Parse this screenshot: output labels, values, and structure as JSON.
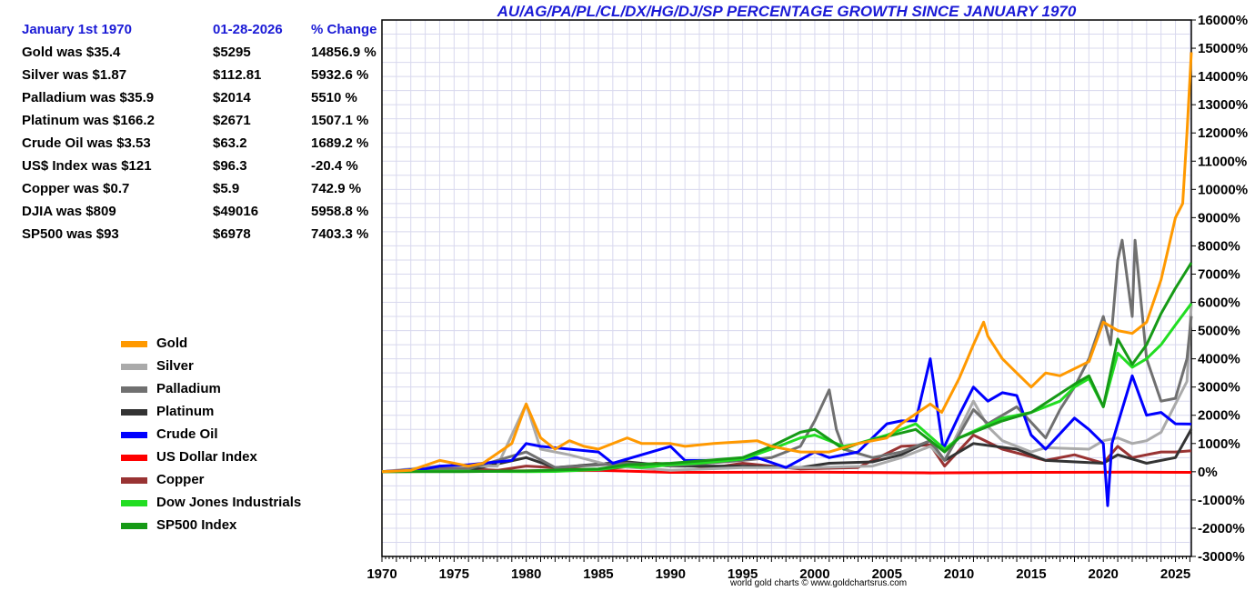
{
  "title": "AU/AG/PA/PL/CL/DX/HG/DJ/SP PERCENTAGE GROWTH SINCE JANUARY 1970",
  "footer": "world gold charts © www.goldchartsrus.com",
  "stats": {
    "headers": [
      "January 1st 1970",
      "01-28-2026",
      "% Change"
    ],
    "rows": [
      {
        "label": "Gold was $35.4",
        "now": "$5295",
        "change": "14856.9 %"
      },
      {
        "label": "Silver was $1.87",
        "now": "$112.81",
        "change": "5932.6 %"
      },
      {
        "label": "Palladium was $35.9",
        "now": "$2014",
        "change": "5510 %"
      },
      {
        "label": "Platinum was $166.2",
        "now": "$2671",
        "change": "1507.1 %"
      },
      {
        "label": "Crude Oil was $3.53",
        "now": "$63.2",
        "change": "1689.2 %"
      },
      {
        "label": "US$ Index was $121",
        "now": "$96.3",
        "change": "-20.4 %"
      },
      {
        "label": "Copper was $0.7",
        "now": "$5.9",
        "change": "742.9 %"
      },
      {
        "label": "DJIA was $809",
        "now": "$49016",
        "change": "5958.8 %"
      },
      {
        "label": "SP500 was $93",
        "now": "$6978",
        "change": "7403.3 %"
      }
    ]
  },
  "chart_data": {
    "type": "line",
    "title": "AU/AG/PA/PL/CL/DX/HG/DJ/SP PERCENTAGE GROWTH SINCE JANUARY 1970",
    "xlabel": "",
    "ylabel": "",
    "xlim": [
      1970,
      2026.1
    ],
    "ylim": [
      -3000,
      16000
    ],
    "x_ticks": [
      1970,
      1975,
      1980,
      1985,
      1990,
      1995,
      2000,
      2005,
      2010,
      2015,
      2020,
      2025
    ],
    "y_ticks": [
      -3000,
      -2000,
      -1000,
      0,
      1000,
      2000,
      3000,
      4000,
      5000,
      6000,
      7000,
      8000,
      9000,
      10000,
      11000,
      12000,
      13000,
      14000,
      15000,
      16000
    ],
    "y_tick_labels": [
      "-3000%",
      "-2000%",
      "-1000%",
      "0%",
      "1000%",
      "2000%",
      "3000%",
      "4000%",
      "5000%",
      "6000%",
      "7000%",
      "8000%",
      "9000%",
      "10000%",
      "11000%",
      "12000%",
      "13000%",
      "14000%",
      "15000%",
      "16000%"
    ],
    "grid": true,
    "legend_position": "left",
    "series": [
      {
        "name": "US Dollar Index",
        "color": "#ff0000",
        "points": [
          [
            1970,
            0
          ],
          [
            1985,
            50
          ],
          [
            1990,
            -20
          ],
          [
            2000,
            -10
          ],
          [
            2008,
            -40
          ],
          [
            2015,
            -20
          ],
          [
            2022,
            -15
          ],
          [
            2026.1,
            -20
          ]
        ]
      },
      {
        "name": "Copper",
        "color": "#993333",
        "points": [
          [
            1970,
            0
          ],
          [
            1974,
            150
          ],
          [
            1978,
            50
          ],
          [
            1980,
            200
          ],
          [
            1985,
            60
          ],
          [
            1989,
            300
          ],
          [
            1993,
            150
          ],
          [
            1995,
            300
          ],
          [
            1999,
            100
          ],
          [
            2003,
            150
          ],
          [
            2006,
            900
          ],
          [
            2008,
            950
          ],
          [
            2009,
            200
          ],
          [
            2011,
            1300
          ],
          [
            2013,
            800
          ],
          [
            2016,
            400
          ],
          [
            2018,
            600
          ],
          [
            2020,
            300
          ],
          [
            2021,
            900
          ],
          [
            2022,
            500
          ],
          [
            2024,
            700
          ],
          [
            2025,
            700
          ],
          [
            2026.1,
            743
          ]
        ]
      },
      {
        "name": "Platinum",
        "color": "#333333",
        "points": [
          [
            1970,
            0
          ],
          [
            1974,
            100
          ],
          [
            1976,
            50
          ],
          [
            1980,
            500
          ],
          [
            1982,
            150
          ],
          [
            1987,
            350
          ],
          [
            1990,
            200
          ],
          [
            1995,
            200
          ],
          [
            1999,
            150
          ],
          [
            2001,
            300
          ],
          [
            2004,
            350
          ],
          [
            2006,
            600
          ],
          [
            2008,
            1100
          ],
          [
            2009,
            400
          ],
          [
            2011,
            1000
          ],
          [
            2014,
            800
          ],
          [
            2016,
            400
          ],
          [
            2020,
            300
          ],
          [
            2021,
            600
          ],
          [
            2023,
            300
          ],
          [
            2025,
            500
          ],
          [
            2026.1,
            1507
          ]
        ]
      },
      {
        "name": "Silver",
        "color": "#aaaaaa",
        "points": [
          [
            1970,
            0
          ],
          [
            1974,
            200
          ],
          [
            1978,
            200
          ],
          [
            1980,
            2400
          ],
          [
            1981,
            800
          ],
          [
            1983,
            600
          ],
          [
            1986,
            200
          ],
          [
            1990,
            50
          ],
          [
            1995,
            150
          ],
          [
            2000,
            150
          ],
          [
            2004,
            200
          ],
          [
            2006,
            500
          ],
          [
            2008,
            900
          ],
          [
            2009,
            400
          ],
          [
            2011,
            2500
          ],
          [
            2012,
            1600
          ],
          [
            2013,
            1100
          ],
          [
            2015,
            700
          ],
          [
            2016,
            850
          ],
          [
            2019,
            800
          ],
          [
            2020,
            1100
          ],
          [
            2021,
            1200
          ],
          [
            2022,
            1000
          ],
          [
            2023,
            1100
          ],
          [
            2024,
            1400
          ],
          [
            2025,
            2400
          ],
          [
            2025.8,
            3200
          ],
          [
            2026.1,
            5933
          ]
        ]
      },
      {
        "name": "Palladium",
        "color": "#707070",
        "points": [
          [
            1970,
            0
          ],
          [
            1973,
            100
          ],
          [
            1976,
            100
          ],
          [
            1980,
            700
          ],
          [
            1982,
            150
          ],
          [
            1987,
            300
          ],
          [
            1990,
            200
          ],
          [
            1995,
            400
          ],
          [
            1997,
            500
          ],
          [
            1999,
            900
          ],
          [
            2000,
            1800
          ],
          [
            2001,
            2900
          ],
          [
            2001.5,
            1500
          ],
          [
            2002,
            800
          ],
          [
            2004,
            500
          ],
          [
            2006,
            700
          ],
          [
            2008,
            1100
          ],
          [
            2009,
            400
          ],
          [
            2011,
            2200
          ],
          [
            2012,
            1700
          ],
          [
            2014,
            2300
          ],
          [
            2016,
            1200
          ],
          [
            2017,
            2200
          ],
          [
            2018,
            3000
          ],
          [
            2019,
            4000
          ],
          [
            2020,
            5500
          ],
          [
            2020.5,
            4500
          ],
          [
            2021,
            7500
          ],
          [
            2021.3,
            8200
          ],
          [
            2022,
            5500
          ],
          [
            2022.2,
            8200
          ],
          [
            2023,
            4000
          ],
          [
            2024,
            2500
          ],
          [
            2025,
            2600
          ],
          [
            2025.8,
            4000
          ],
          [
            2026.1,
            5510
          ]
        ]
      },
      {
        "name": "Crude Oil",
        "color": "#0000ff",
        "points": [
          [
            1970,
            0
          ],
          [
            1973,
            100
          ],
          [
            1974,
            200
          ],
          [
            1976,
            250
          ],
          [
            1979,
            400
          ],
          [
            1980,
            1000
          ],
          [
            1981,
            900
          ],
          [
            1985,
            700
          ],
          [
            1986,
            300
          ],
          [
            1990,
            900
          ],
          [
            1991,
            400
          ],
          [
            1994,
            400
          ],
          [
            1996,
            500
          ],
          [
            1998,
            150
          ],
          [
            2000,
            700
          ],
          [
            2001,
            500
          ],
          [
            2003,
            700
          ],
          [
            2005,
            1700
          ],
          [
            2006,
            1800
          ],
          [
            2007,
            1800
          ],
          [
            2008,
            4000
          ],
          [
            2008.9,
            800
          ],
          [
            2010,
            2000
          ],
          [
            2011,
            3000
          ],
          [
            2012,
            2500
          ],
          [
            2013,
            2800
          ],
          [
            2014,
            2700
          ],
          [
            2015,
            1300
          ],
          [
            2016,
            800
          ],
          [
            2018,
            1900
          ],
          [
            2019,
            1500
          ],
          [
            2020,
            1000
          ],
          [
            2020.3,
            -1200
          ],
          [
            2020.6,
            1000
          ],
          [
            2021,
            1700
          ],
          [
            2022,
            3400
          ],
          [
            2023,
            2000
          ],
          [
            2024,
            2100
          ],
          [
            2025,
            1700
          ],
          [
            2026.1,
            1689
          ]
        ]
      },
      {
        "name": "Dow Jones Industrials",
        "color": "#22dd22",
        "points": [
          [
            1970,
            0
          ],
          [
            1975,
            20
          ],
          [
            1980,
            0
          ],
          [
            1982,
            10
          ],
          [
            1985,
            80
          ],
          [
            1987,
            200
          ],
          [
            1988,
            150
          ],
          [
            1990,
            250
          ],
          [
            1992,
            300
          ],
          [
            1995,
            450
          ],
          [
            1997,
            800
          ],
          [
            1999,
            1200
          ],
          [
            2000,
            1300
          ],
          [
            2002,
            900
          ],
          [
            2003,
            1000
          ],
          [
            2005,
            1300
          ],
          [
            2007,
            1700
          ],
          [
            2009,
            800
          ],
          [
            2010,
            1200
          ],
          [
            2013,
            1900
          ],
          [
            2015,
            2100
          ],
          [
            2017,
            2500
          ],
          [
            2018,
            3000
          ],
          [
            2019,
            3300
          ],
          [
            2020,
            2300
          ],
          [
            2021,
            4200
          ],
          [
            2022,
            3700
          ],
          [
            2023,
            4000
          ],
          [
            2024,
            4500
          ],
          [
            2025,
            5200
          ],
          [
            2026.1,
            5959
          ]
        ]
      },
      {
        "name": "SP500 Index",
        "color": "#169a16",
        "points": [
          [
            1970,
            0
          ],
          [
            1975,
            0
          ],
          [
            1980,
            30
          ],
          [
            1985,
            100
          ],
          [
            1987,
            250
          ],
          [
            1990,
            300
          ],
          [
            1995,
            500
          ],
          [
            1997,
            900
          ],
          [
            1999,
            1400
          ],
          [
            2000,
            1500
          ],
          [
            2002,
            800
          ],
          [
            2003,
            1000
          ],
          [
            2007,
            1500
          ],
          [
            2009,
            700
          ],
          [
            2010,
            1200
          ],
          [
            2013,
            1800
          ],
          [
            2015,
            2100
          ],
          [
            2018,
            3100
          ],
          [
            2019,
            3400
          ],
          [
            2020,
            2300
          ],
          [
            2021,
            4700
          ],
          [
            2022,
            3800
          ],
          [
            2023,
            4500
          ],
          [
            2024,
            5600
          ],
          [
            2025,
            6500
          ],
          [
            2026.1,
            7403
          ]
        ]
      },
      {
        "name": "Gold",
        "color": "#ff9900",
        "points": [
          [
            1970,
            0
          ],
          [
            1972,
            50
          ],
          [
            1974,
            400
          ],
          [
            1976,
            200
          ],
          [
            1977,
            300
          ],
          [
            1979,
            1000
          ],
          [
            1980,
            2400
          ],
          [
            1981,
            1200
          ],
          [
            1982,
            800
          ],
          [
            1983,
            1100
          ],
          [
            1984,
            900
          ],
          [
            1985,
            800
          ],
          [
            1987,
            1200
          ],
          [
            1988,
            1000
          ],
          [
            1990,
            1000
          ],
          [
            1991,
            900
          ],
          [
            1993,
            1000
          ],
          [
            1996,
            1100
          ],
          [
            1997,
            900
          ],
          [
            1999,
            700
          ],
          [
            2001,
            700
          ],
          [
            2003,
            1000
          ],
          [
            2005,
            1200
          ],
          [
            2006,
            1700
          ],
          [
            2008,
            2400
          ],
          [
            2008.8,
            2100
          ],
          [
            2010,
            3300
          ],
          [
            2011,
            4500
          ],
          [
            2011.7,
            5300
          ],
          [
            2012,
            4800
          ],
          [
            2013,
            4000
          ],
          [
            2014,
            3500
          ],
          [
            2015,
            3000
          ],
          [
            2016,
            3500
          ],
          [
            2017,
            3400
          ],
          [
            2019,
            3900
          ],
          [
            2020,
            5300
          ],
          [
            2021,
            5000
          ],
          [
            2022,
            4900
          ],
          [
            2023,
            5300
          ],
          [
            2024,
            6800
          ],
          [
            2025,
            9000
          ],
          [
            2025.5,
            9500
          ],
          [
            2025.8,
            12000
          ],
          [
            2026.1,
            14857
          ]
        ]
      }
    ]
  }
}
